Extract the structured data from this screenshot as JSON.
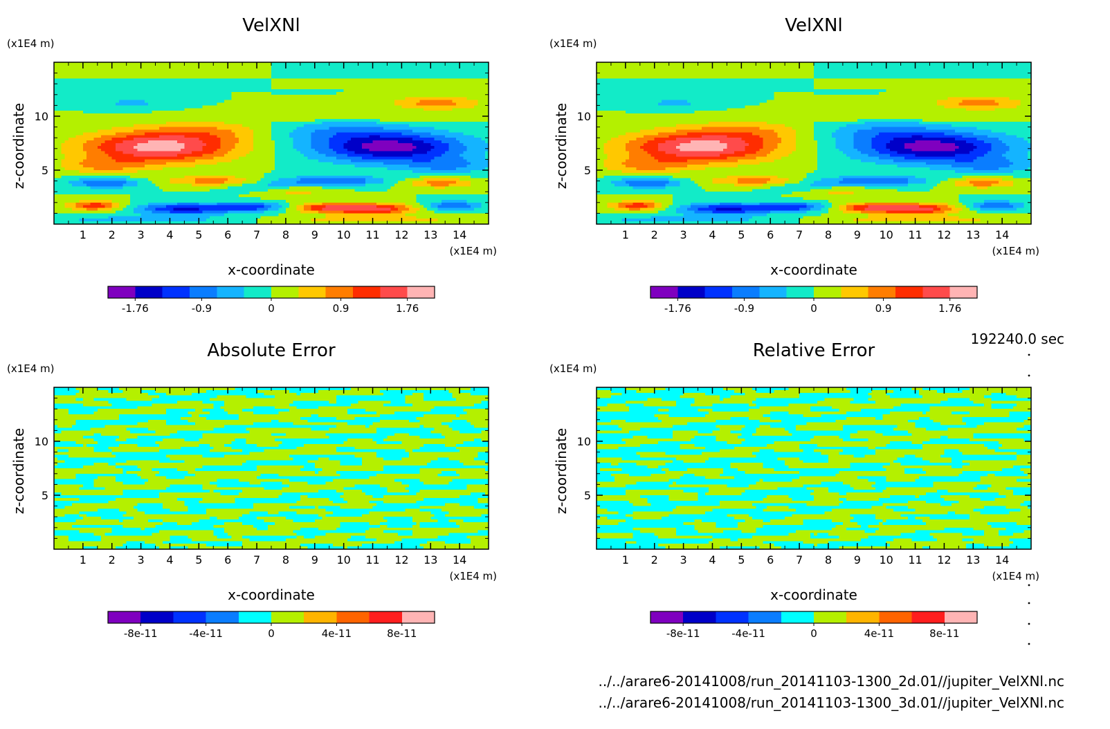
{
  "time_label": "192240.0 sec",
  "footer_files": [
    "../../arare6-20141008/run_20141103-1300_2d.01//jupiter_VelXNl.nc",
    "../../arare6-20141008/run_20141103-1300_3d.01//jupiter_VelXNl.nc"
  ],
  "chart_data": [
    {
      "type": "heatmap",
      "title": "VelXNl",
      "xlabel": "x-coordinate",
      "ylabel": "z-coordinate",
      "x_unit": "(x1E4 m)",
      "y_unit": "(x1E4 m)",
      "xlim": [
        0,
        15
      ],
      "ylim": [
        0,
        15
      ],
      "x_ticks": [
        1,
        2,
        3,
        4,
        5,
        6,
        7,
        8,
        9,
        10,
        11,
        12,
        13,
        14
      ],
      "y_ticks": [
        5,
        10
      ],
      "colorbar": {
        "levels": [
          -1.76,
          -1.408,
          -1.056,
          -0.704,
          -0.352,
          0,
          0.352,
          0.704,
          1.056,
          1.408,
          1.76
        ],
        "colors": [
          "#7f00bf",
          "#0000c8",
          "#0032ff",
          "#0a7dff",
          "#14b4ff",
          "#12ebc8",
          "#b4f000",
          "#ffc800",
          "#ff7d00",
          "#ff2d00",
          "#ff4b4b",
          "#ffb4b4"
        ],
        "tick_values": [
          -1.76,
          -0.9,
          0,
          0.9,
          1.76
        ],
        "tick_labels": [
          "-1.76",
          "-0.9",
          "0",
          "0.9",
          "1.76"
        ]
      },
      "features": [
        {
          "x": 3.5,
          "z": 7.2,
          "value": 1.6
        },
        {
          "x": 11.5,
          "z": 7.2,
          "value": -1.6
        },
        {
          "x": 4.5,
          "z": 1.4,
          "value": -1.2
        },
        {
          "x": 9.7,
          "z": 4.0,
          "value": -1.0
        },
        {
          "x": 9.5,
          "z": 1.4,
          "value": 1.2
        },
        {
          "x": 5.5,
          "z": 4.0,
          "value": 0.9
        }
      ]
    },
    {
      "type": "heatmap",
      "title": "VelXNl",
      "xlabel": "x-coordinate",
      "ylabel": "z-coordinate",
      "x_unit": "(x1E4 m)",
      "y_unit": "(x1E4 m)",
      "xlim": [
        0,
        15
      ],
      "ylim": [
        0,
        15
      ],
      "x_ticks": [
        1,
        2,
        3,
        4,
        5,
        6,
        7,
        8,
        9,
        10,
        11,
        12,
        13,
        14
      ],
      "y_ticks": [
        5,
        10
      ],
      "colorbar": {
        "levels": [
          -1.76,
          -1.408,
          -1.056,
          -0.704,
          -0.352,
          0,
          0.352,
          0.704,
          1.056,
          1.408,
          1.76
        ],
        "colors": [
          "#7f00bf",
          "#0000c8",
          "#0032ff",
          "#0a7dff",
          "#14b4ff",
          "#12ebc8",
          "#b4f000",
          "#ffc800",
          "#ff7d00",
          "#ff2d00",
          "#ff4b4b",
          "#ffb4b4"
        ],
        "tick_values": [
          -1.76,
          -0.9,
          0,
          0.9,
          1.76
        ],
        "tick_labels": [
          "-1.76",
          "-0.9",
          "0",
          "0.9",
          "1.76"
        ]
      }
    },
    {
      "type": "heatmap",
      "title": "Absolute Error",
      "xlabel": "x-coordinate",
      "ylabel": "z-coordinate",
      "x_unit": "(x1E4 m)",
      "y_unit": "(x1E4 m)",
      "xlim": [
        0,
        15
      ],
      "ylim": [
        0,
        15
      ],
      "x_ticks": [
        1,
        2,
        3,
        4,
        5,
        6,
        7,
        8,
        9,
        10,
        11,
        12,
        13,
        14
      ],
      "y_ticks": [
        5,
        10
      ],
      "colorbar": {
        "levels": [
          -1e-10,
          -8e-11,
          -6e-11,
          -4e-11,
          -2e-11,
          0,
          2e-11,
          4e-11,
          6e-11,
          8e-11,
          1e-10
        ],
        "colors": [
          "#7f00bf",
          "#0000c8",
          "#0032ff",
          "#0a7dff",
          "#00ffff",
          "#b4f000",
          "#ffb400",
          "#ff6400",
          "#ff1e1e",
          "#ffb4b4"
        ],
        "tick_values": [
          -8e-11,
          -4e-11,
          0,
          4e-11,
          8e-11
        ],
        "tick_labels": [
          "-8e-11",
          "-4e-11",
          "0",
          "4e-11",
          "8e-11"
        ]
      }
    },
    {
      "type": "heatmap",
      "title": "Relative Error",
      "xlabel": "x-coordinate",
      "ylabel": "z-coordinate",
      "x_unit": "(x1E4 m)",
      "y_unit": "(x1E4 m)",
      "xlim": [
        0,
        15
      ],
      "ylim": [
        0,
        15
      ],
      "x_ticks": [
        1,
        2,
        3,
        4,
        5,
        6,
        7,
        8,
        9,
        10,
        11,
        12,
        13,
        14
      ],
      "y_ticks": [
        5,
        10
      ],
      "colorbar": {
        "levels": [
          -1e-10,
          -8e-11,
          -6e-11,
          -4e-11,
          -2e-11,
          0,
          2e-11,
          4e-11,
          6e-11,
          8e-11,
          1e-10
        ],
        "colors": [
          "#7f00bf",
          "#0000c8",
          "#0032ff",
          "#0a7dff",
          "#00ffff",
          "#b4f000",
          "#ffb400",
          "#ff6400",
          "#ff1e1e",
          "#ffb4b4"
        ],
        "tick_values": [
          -8e-11,
          -4e-11,
          0,
          4e-11,
          8e-11
        ],
        "tick_labels": [
          "-8e-11",
          "-4e-11",
          "0",
          "4e-11",
          "8e-11"
        ]
      }
    }
  ]
}
